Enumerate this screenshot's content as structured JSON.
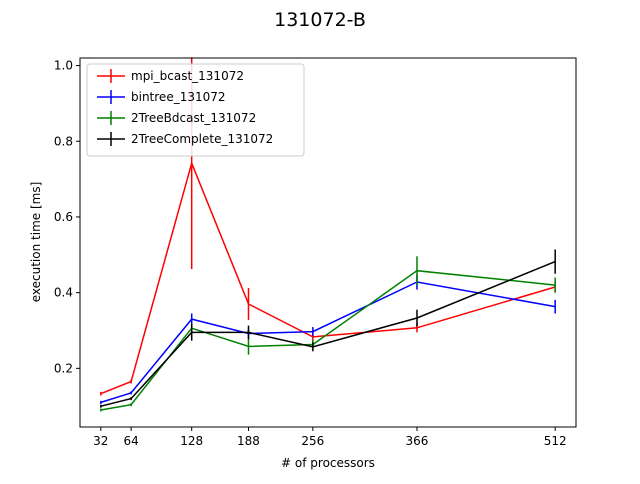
{
  "chart_data": {
    "type": "line",
    "title": "131072-B",
    "xlabel": "# of processors",
    "ylabel": "execution time [ms]",
    "x": [
      32,
      64,
      128,
      188,
      256,
      366,
      512
    ],
    "xticks": [
      "32",
      "64",
      "128",
      "188",
      "256",
      "366",
      "512"
    ],
    "yticks": [
      "0.2",
      "0.4",
      "0.6",
      "0.8",
      "1.0"
    ],
    "xlim": [
      10,
      534
    ],
    "ylim": [
      0.045,
      1.02
    ],
    "legend_position": "top-left",
    "grid": false,
    "series": [
      {
        "name": "mpi_bcast_131072",
        "color": "#ff0000",
        "values": [
          0.133,
          0.165,
          0.742,
          0.37,
          0.283,
          0.307,
          0.415
        ],
        "errors": [
          0.005,
          0.005,
          0.28,
          0.042,
          0.012,
          0.012,
          0.015
        ]
      },
      {
        "name": "bintree_131072",
        "color": "#0000ff",
        "values": [
          0.11,
          0.135,
          0.33,
          0.292,
          0.297,
          0.428,
          0.363
        ],
        "errors": [
          0.004,
          0.004,
          0.015,
          0.012,
          0.012,
          0.02,
          0.018
        ]
      },
      {
        "name": "2TreeBdcast_131072",
        "color": "#008000",
        "values": [
          0.09,
          0.104,
          0.306,
          0.258,
          0.263,
          0.458,
          0.42
        ],
        "errors": [
          0.004,
          0.004,
          0.012,
          0.022,
          0.012,
          0.038,
          0.02
        ]
      },
      {
        "name": "2TreeComplete_131072",
        "color": "#000000",
        "values": [
          0.1,
          0.12,
          0.295,
          0.295,
          0.257,
          0.333,
          0.482
        ],
        "errors": [
          0.004,
          0.004,
          0.022,
          0.018,
          0.012,
          0.022,
          0.032
        ]
      }
    ]
  }
}
